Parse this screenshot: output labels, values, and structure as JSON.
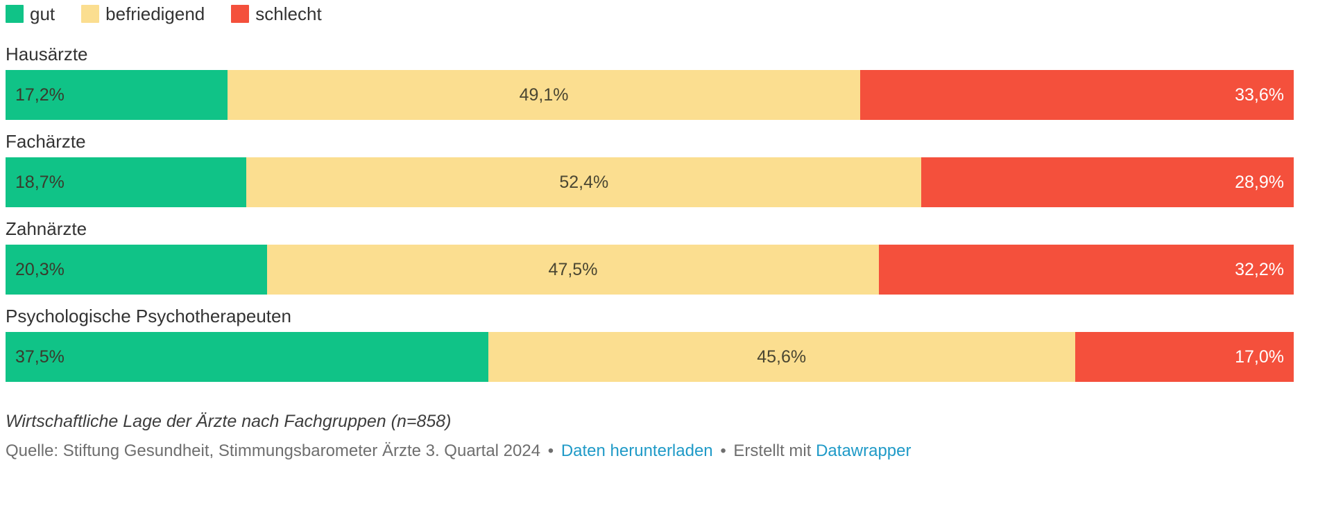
{
  "colors": {
    "gut": "#10c387",
    "befriedigend": "#fbde90",
    "schlecht": "#f4503c",
    "link": "#1f9ac7",
    "label_dark": "#3a3a2c",
    "label_light": "#ffffff"
  },
  "legend": {
    "items": [
      {
        "label": "gut",
        "color": "#10c387"
      },
      {
        "label": "befriedigend",
        "color": "#fbde90"
      },
      {
        "label": "schlecht",
        "color": "#f4503c"
      }
    ]
  },
  "chart_data": {
    "type": "bar",
    "stacked": true,
    "orientation": "horizontal",
    "normalized_to_100": true,
    "legend_position": "top",
    "grid": false,
    "categories": [
      "Hausärzte",
      "Fachärzte",
      "Zahnärzte",
      "Psychologische Psychotherapeuten"
    ],
    "series": [
      {
        "name": "gut",
        "color": "#10c387",
        "text_color": "#3a3a2c",
        "align": "left",
        "values": [
          17.2,
          18.7,
          20.3,
          37.5
        ],
        "labels": [
          "17,2%",
          "18,7%",
          "20,3%",
          "37,5%"
        ]
      },
      {
        "name": "befriedigend",
        "color": "#fbde90",
        "text_color": "#4a4632",
        "align": "center",
        "values": [
          49.1,
          52.4,
          47.5,
          45.6
        ],
        "labels": [
          "49,1%",
          "52,4%",
          "47,5%",
          "45,6%"
        ]
      },
      {
        "name": "schlecht",
        "color": "#f4503c",
        "text_color": "#ffffff",
        "align": "right",
        "values": [
          33.6,
          28.9,
          32.2,
          17.0
        ],
        "labels": [
          "33,6%",
          "28,9%",
          "32,2%",
          "17,0%"
        ]
      }
    ],
    "note": "Wirtschaftliche Lage der Ärzte nach Fachgruppen (n=858)",
    "source": "Quelle: Stiftung Gesundheit, Stimmungsbarometer Ärzte 3. Quartal 2024"
  },
  "footer": {
    "note": "Wirtschaftliche Lage der Ärzte nach Fachgruppen (n=858)",
    "source_text": "Quelle: Stiftung Gesundheit, Stimmungsbarometer Ärzte 3. Quartal 2024",
    "separator": "•",
    "download_link": "Daten herunterladen",
    "created_with": "Erstellt mit",
    "datawrapper_link": "Datawrapper"
  }
}
